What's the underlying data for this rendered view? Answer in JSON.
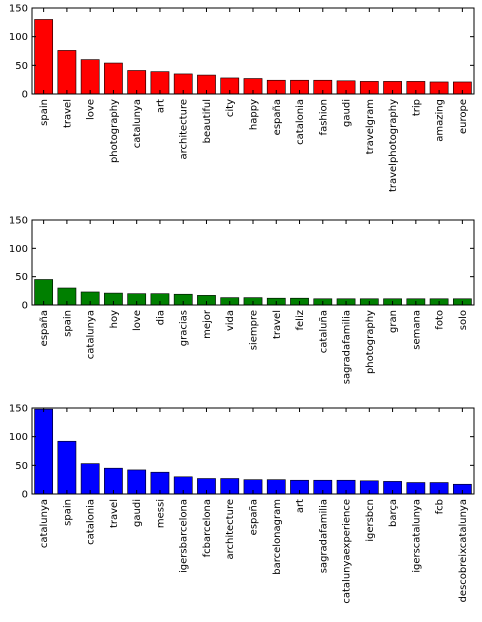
{
  "chart_data": [
    {
      "type": "bar",
      "color": "#ff0000",
      "ylim": [
        0,
        150
      ],
      "yticks": [
        0,
        50,
        100,
        150
      ],
      "grid": false,
      "categories": [
        "spain",
        "travel",
        "love",
        "photography",
        "catalunya",
        "art",
        "architecture",
        "beautiful",
        "city",
        "happy",
        "españa",
        "catalonia",
        "fashion",
        "gaudi",
        "travelgram",
        "travelphotography",
        "trip",
        "amazing",
        "europe"
      ],
      "values": [
        130,
        76,
        60,
        54,
        41,
        39,
        35,
        33,
        28,
        27,
        24,
        24,
        24,
        23,
        22,
        22,
        22,
        21,
        21
      ]
    },
    {
      "type": "bar",
      "color": "#007f00",
      "ylim": [
        0,
        150
      ],
      "yticks": [
        0,
        50,
        100,
        150
      ],
      "grid": false,
      "categories": [
        "españa",
        "spain",
        "catalunya",
        "hoy",
        "love",
        "dia",
        "gracias",
        "mejor",
        "vida",
        "siempre",
        "travel",
        "feliz",
        "cataluña",
        "sagradafamilia",
        "photography",
        "gran",
        "semana",
        "foto",
        "solo"
      ],
      "values": [
        45,
        30,
        23,
        21,
        20,
        20,
        19,
        17,
        13,
        13,
        12,
        12,
        11,
        11,
        11,
        11,
        11,
        11,
        11
      ]
    },
    {
      "type": "bar",
      "color": "#0000ff",
      "ylim": [
        0,
        150
      ],
      "yticks": [
        0,
        50,
        100,
        150
      ],
      "grid": false,
      "categories": [
        "catalunya",
        "spain",
        "catalonia",
        "travel",
        "gaudi",
        "messi",
        "igersbarcelona",
        "fcbarcelona",
        "architecture",
        "españa",
        "barcelonagram",
        "art",
        "sagradafamilia",
        "catalunyaexperience",
        "igersbcn",
        "barça",
        "igerscatalunya",
        "fcb",
        "descobreixcatalunya"
      ],
      "values": [
        148,
        92,
        53,
        45,
        42,
        38,
        30,
        27,
        27,
        25,
        25,
        24,
        24,
        24,
        23,
        22,
        20,
        20,
        17
      ]
    }
  ]
}
